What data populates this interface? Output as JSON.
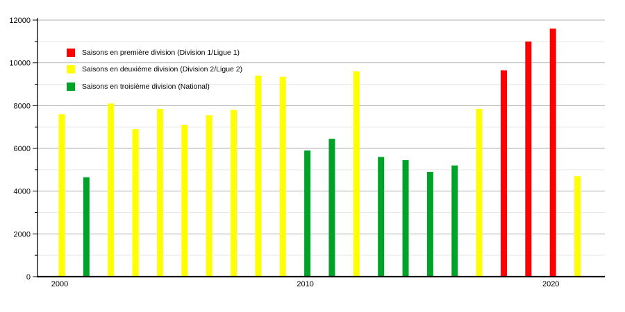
{
  "chart_data": {
    "type": "bar",
    "title": "",
    "y_axis": {
      "min": 0,
      "max": 12000,
      "major_step": 2000,
      "minor_step": 1000,
      "tick_labels": [
        "0",
        "2000",
        "4000",
        "6000",
        "8000",
        "10000",
        "12000"
      ]
    },
    "x_axis": {
      "labeled_years": [
        2000,
        2010,
        2020
      ],
      "tick_labels": [
        "2000",
        "2010",
        "2020"
      ]
    },
    "colors": {
      "premiere": "#ff0000",
      "deuxieme": "#ffff00",
      "troisieme": "#00a227"
    },
    "legend": [
      {
        "key": "premiere",
        "label": "Saisons en première division (Division 1/Ligue 1)"
      },
      {
        "key": "deuxieme",
        "label": "Saisons en deuxième division (Division 2/Ligue 2)"
      },
      {
        "key": "troisieme",
        "label": "Saisons en troisième division (National)"
      }
    ],
    "bars": [
      {
        "year": 2000,
        "division": "deuxieme",
        "value": 7600
      },
      {
        "year": 2001,
        "division": "troisieme",
        "value": 4650
      },
      {
        "year": 2002,
        "division": "deuxieme",
        "value": 8100
      },
      {
        "year": 2003,
        "division": "deuxieme",
        "value": 6900
      },
      {
        "year": 2004,
        "division": "deuxieme",
        "value": 7850
      },
      {
        "year": 2005,
        "division": "deuxieme",
        "value": 7100
      },
      {
        "year": 2006,
        "division": "deuxieme",
        "value": 7550
      },
      {
        "year": 2007,
        "division": "deuxieme",
        "value": 7800
      },
      {
        "year": 2008,
        "division": "deuxieme",
        "value": 9400
      },
      {
        "year": 2009,
        "division": "deuxieme",
        "value": 9350
      },
      {
        "year": 2010,
        "division": "troisieme",
        "value": 5900
      },
      {
        "year": 2011,
        "division": "troisieme",
        "value": 6450
      },
      {
        "year": 2012,
        "division": "deuxieme",
        "value": 9600
      },
      {
        "year": 2013,
        "division": "troisieme",
        "value": 5600
      },
      {
        "year": 2014,
        "division": "troisieme",
        "value": 5450
      },
      {
        "year": 2015,
        "division": "troisieme",
        "value": 4900
      },
      {
        "year": 2016,
        "division": "troisieme",
        "value": 5200
      },
      {
        "year": 2017,
        "division": "deuxieme",
        "value": 7850
      },
      {
        "year": 2018,
        "division": "premiere",
        "value": 9650
      },
      {
        "year": 2019,
        "division": "premiere",
        "value": 11000
      },
      {
        "year": 2020,
        "division": "premiere",
        "value": 11600
      },
      {
        "year": 2021,
        "division": "deuxieme",
        "value": 4700
      }
    ]
  }
}
